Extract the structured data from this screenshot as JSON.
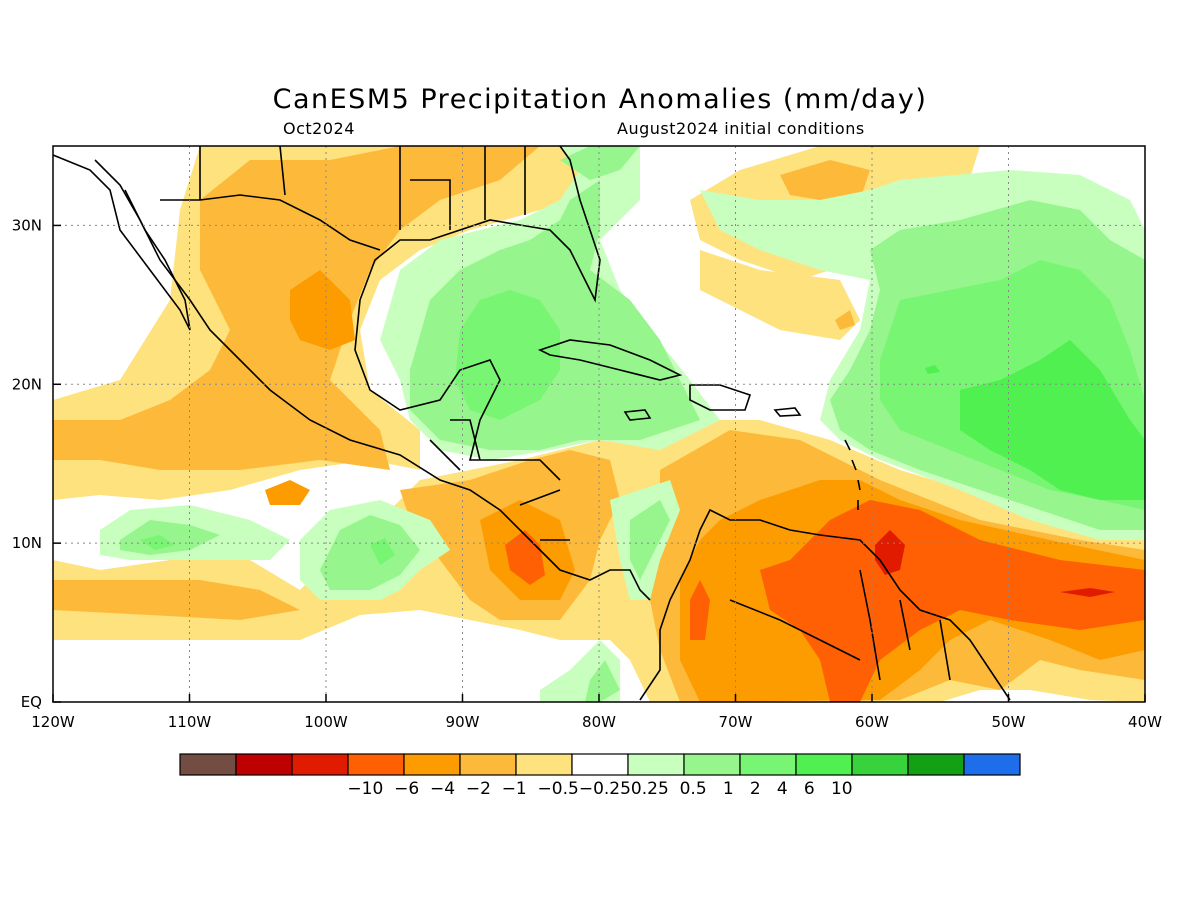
{
  "title": "CanESM5 Precipitation Anomalies (mm/day)",
  "subtitle_left": "Oct2024",
  "subtitle_right": "August2024 initial conditions",
  "x_axis": {
    "ticks": [
      -120,
      -110,
      -100,
      -90,
      -80,
      -70,
      -60,
      -50,
      -40
    ],
    "tick_labels": [
      "120W",
      "110W",
      "100W",
      "90W",
      "80W",
      "70W",
      "60W",
      "50W",
      "40W"
    ],
    "range": [
      -120,
      -40
    ]
  },
  "y_axis": {
    "ticks": [
      0,
      10,
      20,
      30
    ],
    "tick_labels": [
      "EQ",
      "10N",
      "20N",
      "30N"
    ],
    "range": [
      0,
      35
    ]
  },
  "grid": "dotted",
  "colorbar": {
    "colors": [
      "#734d41",
      "#bf0000",
      "#e01b00",
      "#fe6003",
      "#fd9c00",
      "#fdba3a",
      "#fde27e",
      "#ffffff",
      "#c8ffbe",
      "#96f58c",
      "#78f573",
      "#50f050",
      "#37d23c",
      "#14a014",
      "#1e6eeb"
    ],
    "labels": [
      "−10",
      "−6",
      "−4",
      "−2",
      "−1",
      "−0.5",
      "−0.25",
      "0.25",
      "0.5",
      "1",
      "2",
      "4",
      "6",
      "10"
    ],
    "label_text": "−10  −6  −4  −2  −1  −0.5−0.250.25  0.5   1   2   4   6   10"
  },
  "chart_data": {
    "type": "heatmap",
    "variable": "precipitation anomaly",
    "units": "mm/day",
    "lon_range": [
      -120,
      -40
    ],
    "lat_range": [
      0,
      35
    ],
    "levels": [
      -10,
      -6,
      -4,
      -2,
      -1,
      -0.5,
      -0.25,
      0.25,
      0.5,
      1,
      2,
      4,
      6,
      10
    ],
    "regions": [
      {
        "name": "eastern Pacific off Mexico",
        "lon": [
          -120,
          -95
        ],
        "lat": [
          14,
          27
        ],
        "value": -1
      },
      {
        "name": "southwestern Mexico",
        "lon": [
          -102,
          -97
        ],
        "lat": [
          22,
          27
        ],
        "value": -2
      },
      {
        "name": "Gulf of Mexico & Florida",
        "lon": [
          -93,
          -80
        ],
        "lat": [
          20,
          30
        ],
        "value": 1
      },
      {
        "name": "Yucatan & Caribbean west",
        "lon": [
          -90,
          -80
        ],
        "lat": [
          15,
          22
        ],
        "value": 1
      },
      {
        "name": "Central America Pacific side",
        "lon": [
          -88,
          -82
        ],
        "lat": [
          7,
          14
        ],
        "value": -2
      },
      {
        "name": "northern South America",
        "lon": [
          -75,
          -55
        ],
        "lat": [
          2,
          12
        ],
        "value": -2
      },
      {
        "name": "tropical Atlantic band",
        "lon": [
          -60,
          -40
        ],
        "lat": [
          5,
          14
        ],
        "value": -2
      },
      {
        "name": "core near 58W 10N",
        "lon": [
          -60,
          -57
        ],
        "lat": [
          9,
          11
        ],
        "value": -4
      },
      {
        "name": "subtropical Atlantic",
        "lon": [
          -60,
          -40
        ],
        "lat": [
          14,
          30
        ],
        "value": 1
      },
      {
        "name": "subtropical Atlantic core",
        "lon": [
          -55,
          -41
        ],
        "lat": [
          15,
          22
        ],
        "value": 2
      },
      {
        "name": "ITCZ east Pacific west",
        "lon": [
          -116,
          -104
        ],
        "lat": [
          9,
          12
        ],
        "value": 0.5
      },
      {
        "name": "ITCZ east Pacific central",
        "lon": [
          -98,
          -92
        ],
        "lat": [
          7,
          13
        ],
        "value": 0.5
      },
      {
        "name": "east Pacific equatorial",
        "lon": [
          -120,
          -100
        ],
        "lat": [
          4,
          9
        ],
        "value": -1
      }
    ]
  }
}
